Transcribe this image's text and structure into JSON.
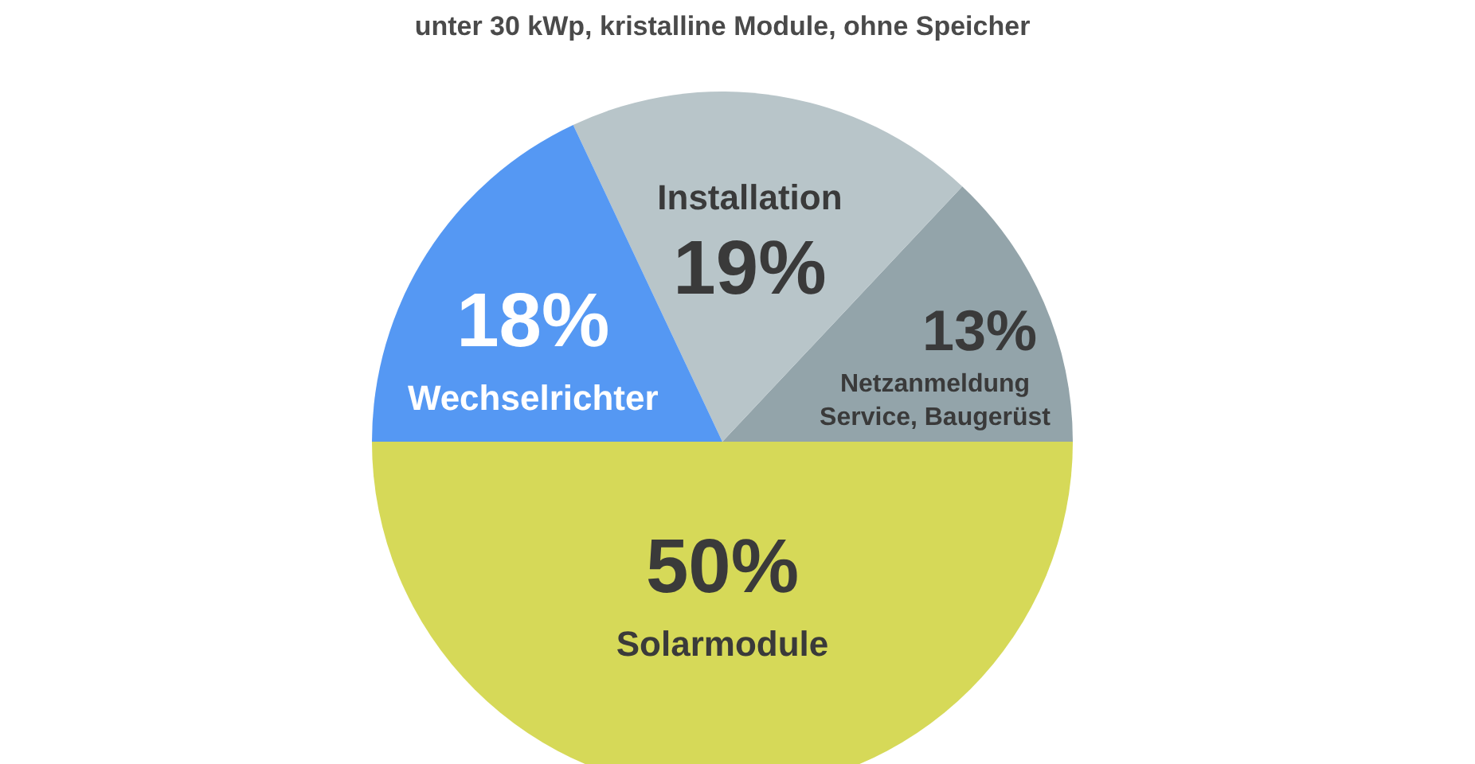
{
  "chart_data": {
    "type": "pie",
    "subtitle": "unter 30 kWp, kristalline Module, ohne Speicher",
    "categories": [
      "Netzanmeldung\nService, Baugerüst",
      "Installation",
      "Wechselrichter",
      "Solarmodule"
    ],
    "values": [
      13,
      19,
      18,
      50
    ],
    "colors": [
      "#93a4aa",
      "#b8c5c9",
      "#5598f3",
      "#d6d958"
    ],
    "value_labels": [
      "13%",
      "19%",
      "18%",
      "50%"
    ]
  }
}
